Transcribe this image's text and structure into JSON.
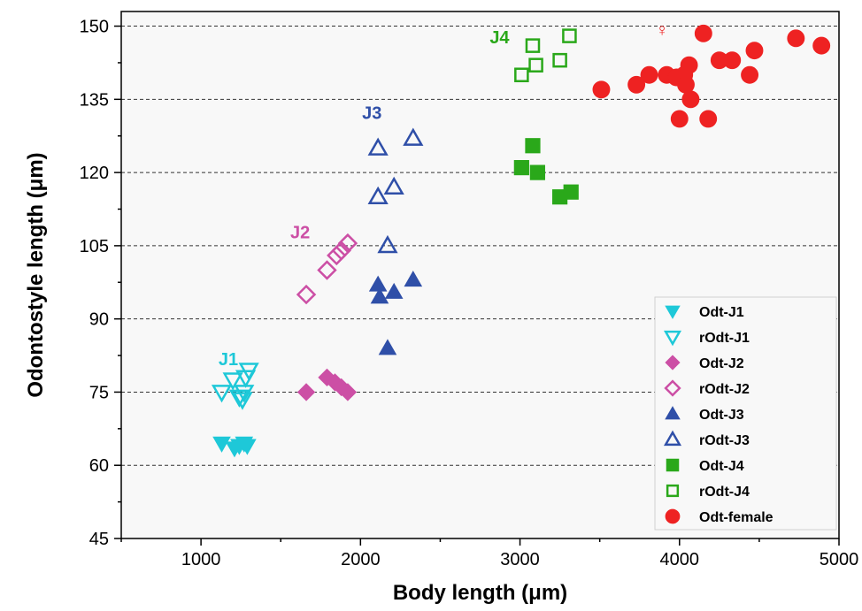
{
  "chart_data": {
    "type": "scatter",
    "xlabel": "Body length (μm)",
    "ylabel": "Odontostyle length (μm)",
    "xlim": [
      500,
      5000
    ],
    "ylim": [
      45,
      153
    ],
    "x_ticks": [
      1000,
      2000,
      3000,
      4000,
      5000
    ],
    "y_ticks": [
      45,
      60,
      75,
      90,
      105,
      120,
      135,
      150
    ],
    "grid": "horizontal dashed at y ticks",
    "background": "#f8f8f8",
    "legend_position": "bottom-right",
    "series": [
      {
        "name": "Odt-J1",
        "marker": "triangle-down-filled",
        "color": "#1ec8d8",
        "points": [
          [
            1130,
            64.5
          ],
          [
            1210,
            63.5
          ],
          [
            1240,
            64
          ],
          [
            1270,
            64.5
          ],
          [
            1290,
            64
          ]
        ]
      },
      {
        "name": "rOdt-J1",
        "marker": "triangle-down-open",
        "color": "#1ec8d8",
        "points": [
          [
            1130,
            75
          ],
          [
            1200,
            77.5
          ],
          [
            1240,
            74
          ],
          [
            1260,
            73.5
          ],
          [
            1280,
            78
          ],
          [
            1300,
            79.5
          ],
          [
            1270,
            75
          ]
        ]
      },
      {
        "name": "Odt-J2",
        "marker": "diamond-filled",
        "color": "#cc4fa5",
        "points": [
          [
            1660,
            75
          ],
          [
            1790,
            78
          ],
          [
            1840,
            77
          ],
          [
            1880,
            76
          ],
          [
            1920,
            75
          ]
        ]
      },
      {
        "name": "rOdt-J2",
        "marker": "diamond-open",
        "color": "#cc4fa5",
        "points": [
          [
            1660,
            95
          ],
          [
            1790,
            100
          ],
          [
            1850,
            103
          ],
          [
            1880,
            104
          ],
          [
            1920,
            105.5
          ]
        ]
      },
      {
        "name": "Odt-J3",
        "marker": "triangle-up-filled",
        "color": "#2f4fa8",
        "points": [
          [
            2110,
            97
          ],
          [
            2120,
            94.5
          ],
          [
            2210,
            95.5
          ],
          [
            2330,
            98
          ],
          [
            2170,
            84
          ]
        ]
      },
      {
        "name": "rOdt-J3",
        "marker": "triangle-up-open",
        "color": "#2f4fa8",
        "points": [
          [
            2110,
            125
          ],
          [
            2330,
            127
          ],
          [
            2110,
            115
          ],
          [
            2210,
            117
          ],
          [
            2170,
            105
          ]
        ]
      },
      {
        "name": "Odt-J4",
        "marker": "square-filled",
        "color": "#2aa81a",
        "points": [
          [
            3010,
            121
          ],
          [
            3080,
            125.5
          ],
          [
            3110,
            120
          ],
          [
            3250,
            115
          ],
          [
            3320,
            116
          ]
        ]
      },
      {
        "name": "rOdt-J4",
        "marker": "square-open",
        "color": "#2aa81a",
        "points": [
          [
            3010,
            140
          ],
          [
            3080,
            146
          ],
          [
            3100,
            142
          ],
          [
            3250,
            143
          ],
          [
            3310,
            148
          ]
        ]
      },
      {
        "name": "Odt-female",
        "marker": "circle-filled",
        "color": "#ee2222",
        "points": [
          [
            3510,
            137
          ],
          [
            3730,
            138
          ],
          [
            3810,
            140
          ],
          [
            3920,
            140
          ],
          [
            3980,
            139.5
          ],
          [
            4000,
            131
          ],
          [
            4030,
            140
          ],
          [
            4040,
            138
          ],
          [
            4060,
            142
          ],
          [
            4070,
            135
          ],
          [
            4150,
            148.5
          ],
          [
            4180,
            131
          ],
          [
            4250,
            143
          ],
          [
            4330,
            143
          ],
          [
            4440,
            140
          ],
          [
            4470,
            145
          ],
          [
            4730,
            147.5
          ],
          [
            4890,
            146
          ]
        ]
      }
    ],
    "annotations": [
      {
        "text": "J1",
        "color": "#1ec8d8"
      },
      {
        "text": "J2",
        "color": "#cc4fa5"
      },
      {
        "text": "J3",
        "color": "#2f4fa8"
      },
      {
        "text": "J4",
        "color": "#2aa81a"
      },
      {
        "text": "♀",
        "color": "#ee2222"
      }
    ]
  }
}
